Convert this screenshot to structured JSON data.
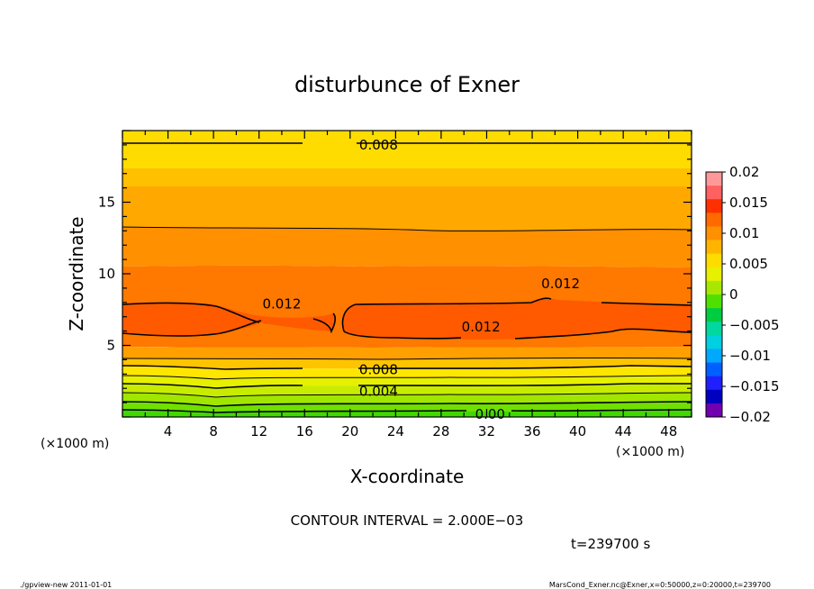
{
  "chart_data": {
    "type": "contour",
    "title": "disturbunce of Exner",
    "xlabel": "X-coordinate",
    "ylabel": "Z-coordinate",
    "x_unit": "(×1000 m)",
    "y_unit": "(×1000 m)",
    "xlim": [
      0,
      50
    ],
    "ylim": [
      0,
      20
    ],
    "x_ticks": [
      4,
      8,
      12,
      16,
      20,
      24,
      28,
      32,
      36,
      40,
      44,
      48
    ],
    "y_ticks": [
      5,
      10,
      15
    ],
    "colorbar": {
      "min": -0.02,
      "max": 0.02,
      "labels": [
        "0.02",
        "0.015",
        "0.01",
        "0.005",
        "0",
        "−0.005",
        "−0.01",
        "−0.015",
        "−0.02"
      ],
      "colors": [
        "#ff9999",
        "#ff6060",
        "#ff3000",
        "#ff6a00",
        "#ff9000",
        "#ffb400",
        "#ffdc00",
        "#e6f000",
        "#a8e800",
        "#50e000",
        "#00cc40",
        "#00d8a0",
        "#00d0e0",
        "#00a8ff",
        "#0060ff",
        "#2020ff",
        "#0000c0",
        "#7000b0"
      ]
    },
    "contour_labels": [
      {
        "text": "0.008",
        "x": 22.5,
        "z": 19.0
      },
      {
        "text": "0.012",
        "x": 14.0,
        "z": 7.9
      },
      {
        "text": "0.012",
        "x": 38.5,
        "z": 9.3
      },
      {
        "text": "0.012",
        "x": 31.5,
        "z": 6.3
      },
      {
        "text": "0.008",
        "x": 22.5,
        "z": 3.3
      },
      {
        "text": "0.004",
        "x": 22.5,
        "z": 1.8
      },
      {
        "text": "0.00",
        "x": 32.3,
        "z": 0.2
      }
    ],
    "contour_interval": "CONTOUR INTERVAL = 2.000E−03",
    "time": "t=239700 s"
  },
  "footer": {
    "left": "./gpview-new  2011-01-01",
    "right": "MarsCond_Exner.nc@Exner,x=0:50000,z=0:20000,t=239700"
  }
}
